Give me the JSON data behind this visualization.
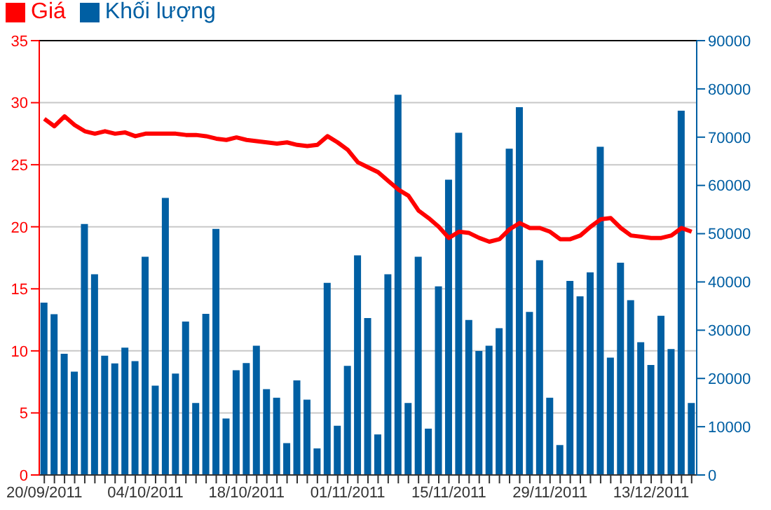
{
  "chart_data": {
    "type": "bar",
    "categories": [
      "20/09/2011",
      null,
      null,
      null,
      null,
      null,
      null,
      null,
      null,
      null,
      "04/10/2011",
      null,
      null,
      null,
      null,
      null,
      null,
      null,
      null,
      null,
      "18/10/2011",
      null,
      null,
      null,
      null,
      null,
      null,
      null,
      null,
      null,
      "01/11/2011",
      null,
      null,
      null,
      null,
      null,
      null,
      null,
      null,
      null,
      "15/11/2011",
      null,
      null,
      null,
      null,
      null,
      null,
      null,
      null,
      null,
      "29/11/2011",
      null,
      null,
      null,
      null,
      null,
      null,
      null,
      null,
      null,
      "13/12/2011",
      null,
      null,
      null,
      null
    ],
    "series": [
      {
        "name": "Giá",
        "type": "line",
        "color": "#ff0000",
        "values": [
          28.7,
          28.1,
          28.9,
          28.2,
          27.7,
          27.5,
          27.7,
          27.5,
          27.6,
          27.3,
          27.5,
          27.5,
          27.5,
          27.5,
          27.4,
          27.4,
          27.3,
          27.1,
          27.0,
          27.2,
          27.0,
          26.9,
          26.8,
          26.7,
          26.8,
          26.6,
          26.5,
          26.6,
          27.3,
          26.8,
          26.2,
          25.2,
          24.8,
          24.4,
          23.7,
          23.0,
          22.5,
          21.3,
          20.7,
          20.0,
          19.1,
          19.6,
          19.5,
          19.1,
          18.8,
          19.0,
          19.8,
          20.3,
          19.9,
          19.9,
          19.6,
          19.0,
          19.0,
          19.3,
          20.0,
          20.6,
          20.7,
          19.9,
          19.3,
          19.2,
          19.1,
          19.1,
          19.3,
          19.9,
          19.6
        ]
      },
      {
        "name": "Khối lượng",
        "axis": "y2",
        "color": "#005fa3",
        "values": [
          35700,
          33300,
          25100,
          21400,
          52000,
          41600,
          24700,
          23100,
          26400,
          23600,
          45200,
          18500,
          57400,
          21000,
          31800,
          14900,
          33400,
          51000,
          11700,
          21700,
          23200,
          26800,
          17800,
          16000,
          6600,
          19600,
          15600,
          5500,
          39800,
          10200,
          22600,
          45500,
          32500,
          8400,
          41600,
          78800,
          14900,
          45200,
          9600,
          39100,
          61200,
          70900,
          32100,
          25700,
          26800,
          30400,
          67600,
          76200,
          33800,
          44500,
          16000,
          6200,
          40200,
          37000,
          42000,
          68000,
          24300,
          44000,
          36200,
          27500,
          22800,
          33000,
          26100,
          75500,
          14900
        ]
      }
    ],
    "ylim": [
      0,
      35
    ],
    "yticks": [
      0,
      5,
      10,
      15,
      20,
      25,
      30,
      35
    ],
    "y2lim": [
      0,
      90000
    ],
    "y2ticks": [
      0,
      10000,
      20000,
      30000,
      40000,
      50000,
      60000,
      70000,
      80000,
      90000
    ],
    "grid": "y",
    "legend": "top left",
    "marker": "none",
    "line_style": "solid"
  }
}
